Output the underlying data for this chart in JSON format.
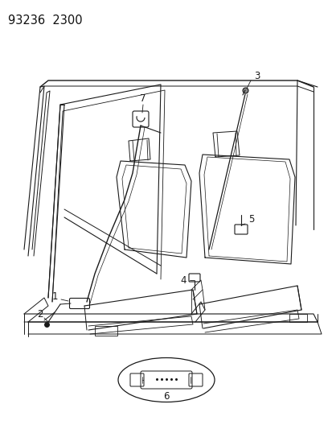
{
  "title": "93236  2300",
  "bg": "#ffffff",
  "lc": "#1a1a1a",
  "fig_w": 4.14,
  "fig_h": 5.33,
  "dpi": 100
}
